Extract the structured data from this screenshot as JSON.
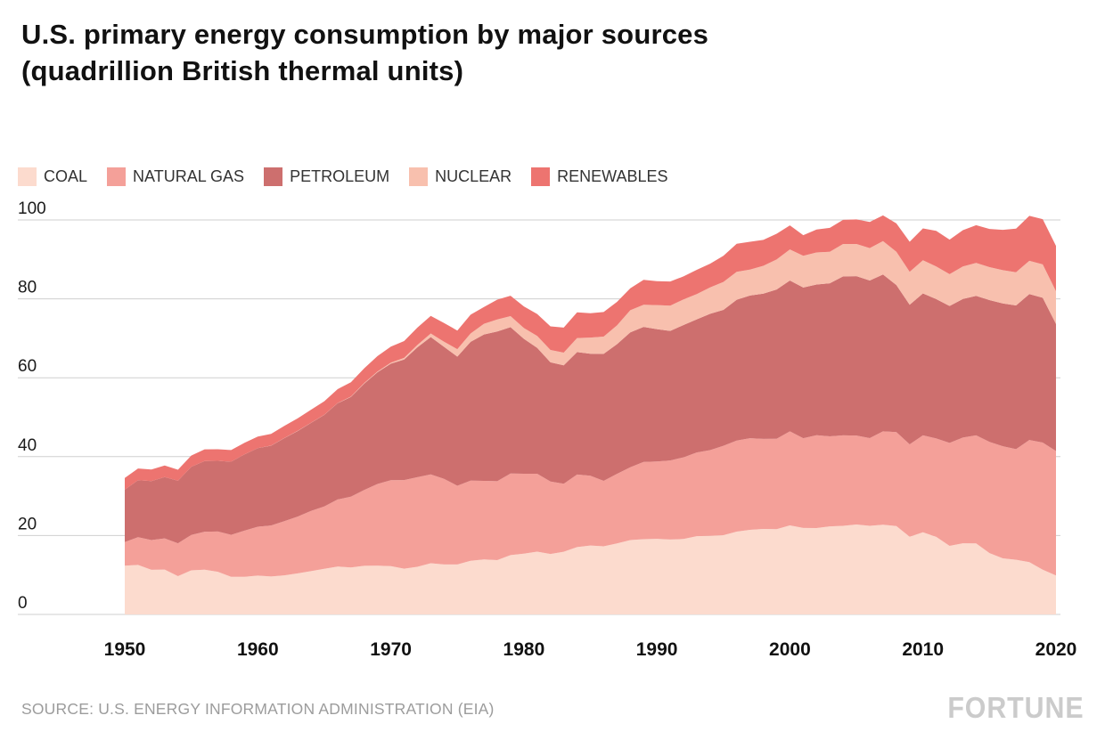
{
  "title": {
    "line1": "U.S. primary energy consumption by major sources",
    "line2": "(quadrillion British thermal units)"
  },
  "legend": [
    {
      "label": "COAL",
      "color": "#fcdbce"
    },
    {
      "label": "NATURAL GAS",
      "color": "#f4a099"
    },
    {
      "label": "PETROLEUM",
      "color": "#cd6f6e"
    },
    {
      "label": "NUCLEAR",
      "color": "#f8c0ae"
    },
    {
      "label": "RENEWABLES",
      "color": "#ed7470"
    }
  ],
  "footer": {
    "source": "SOURCE: U.S. ENERGY INFORMATION ADMINISTRATION (EIA)",
    "brand": "FORTUNE"
  },
  "chart_data": {
    "type": "area",
    "stacked": true,
    "title": "U.S. primary energy consumption by major sources (quadrillion British thermal units)",
    "xlabel": "",
    "ylabel": "",
    "xlim": [
      1950,
      2020
    ],
    "ylim": [
      0,
      100
    ],
    "yticks": [
      0,
      20,
      40,
      60,
      80,
      100
    ],
    "xticks": [
      1950,
      1960,
      1970,
      1980,
      1990,
      2000,
      2010,
      2020
    ],
    "grid": "horizontal",
    "legend_position": "top",
    "years": [
      1950,
      1951,
      1952,
      1953,
      1954,
      1955,
      1956,
      1957,
      1958,
      1959,
      1960,
      1961,
      1962,
      1963,
      1964,
      1965,
      1966,
      1967,
      1968,
      1969,
      1970,
      1971,
      1972,
      1973,
      1974,
      1975,
      1976,
      1977,
      1978,
      1979,
      1980,
      1981,
      1982,
      1983,
      1984,
      1985,
      1986,
      1987,
      1988,
      1989,
      1990,
      1991,
      1992,
      1993,
      1994,
      1995,
      1996,
      1997,
      1998,
      1999,
      2000,
      2001,
      2002,
      2003,
      2004,
      2005,
      2006,
      2007,
      2008,
      2009,
      2010,
      2011,
      2012,
      2013,
      2014,
      2015,
      2016,
      2017,
      2018,
      2019,
      2020
    ],
    "series": [
      {
        "name": "COAL",
        "color": "#fcdbce",
        "values": [
          12.35,
          12.55,
          11.31,
          11.37,
          9.71,
          11.17,
          11.35,
          10.82,
          9.53,
          9.52,
          9.84,
          9.62,
          9.91,
          10.41,
          10.96,
          11.58,
          12.14,
          11.91,
          12.33,
          12.38,
          12.26,
          11.6,
          12.08,
          12.97,
          12.66,
          12.66,
          13.58,
          13.92,
          13.77,
          15.04,
          15.42,
          15.91,
          15.32,
          15.89,
          17.07,
          17.48,
          17.26,
          18.01,
          18.85,
          19.07,
          19.17,
          18.99,
          19.12,
          19.84,
          19.91,
          20.09,
          21.0,
          21.45,
          21.66,
          21.62,
          22.58,
          21.91,
          21.9,
          22.32,
          22.47,
          22.8,
          22.45,
          22.75,
          22.39,
          19.69,
          20.83,
          19.66,
          17.38,
          18.04,
          18.0,
          15.55,
          14.23,
          13.87,
          13.25,
          11.34,
          9.89
        ]
      },
      {
        "name": "NATURAL GAS",
        "color": "#f4a099",
        "values": [
          5.97,
          7.05,
          7.55,
          7.91,
          8.33,
          8.98,
          9.61,
          10.19,
          10.66,
          11.72,
          12.39,
          12.93,
          13.73,
          14.4,
          15.29,
          15.77,
          17.0,
          17.94,
          19.21,
          20.68,
          21.79,
          22.47,
          22.7,
          22.51,
          21.73,
          19.95,
          20.35,
          19.93,
          20.0,
          20.67,
          20.24,
          19.75,
          18.36,
          17.22,
          18.39,
          17.7,
          16.59,
          17.64,
          18.45,
          19.6,
          19.6,
          20.03,
          20.71,
          21.23,
          21.73,
          22.67,
          23.09,
          23.22,
          22.83,
          22.91,
          23.82,
          22.77,
          23.51,
          22.83,
          22.93,
          22.56,
          22.24,
          23.66,
          23.84,
          23.42,
          24.57,
          24.95,
          26.09,
          26.8,
          27.39,
          28.19,
          28.4,
          28.03,
          30.96,
          32.22,
          31.54
        ]
      },
      {
        "name": "PETROLEUM",
        "color": "#cd6f6e",
        "values": [
          13.31,
          14.43,
          14.96,
          15.56,
          15.84,
          17.25,
          17.94,
          17.93,
          18.53,
          19.32,
          19.92,
          20.22,
          21.05,
          21.7,
          22.3,
          23.24,
          24.4,
          25.28,
          26.98,
          28.34,
          29.52,
          30.56,
          32.95,
          34.84,
          33.45,
          32.73,
          35.17,
          37.12,
          37.97,
          37.12,
          34.2,
          31.93,
          30.23,
          30.05,
          31.05,
          30.92,
          32.2,
          32.87,
          34.22,
          34.21,
          33.55,
          32.85,
          33.53,
          33.74,
          34.56,
          34.44,
          35.68,
          36.16,
          36.82,
          37.84,
          38.26,
          38.19,
          38.22,
          38.81,
          40.29,
          40.39,
          39.96,
          39.77,
          37.28,
          35.4,
          35.97,
          35.33,
          34.73,
          35.11,
          35.38,
          35.95,
          36.21,
          36.43,
          37.0,
          36.72,
          32.23
        ]
      },
      {
        "name": "NUCLEAR",
        "color": "#f8c0ae",
        "values": [
          0,
          0,
          0,
          0,
          0,
          0,
          0,
          0,
          0,
          0,
          0.01,
          0.02,
          0.03,
          0.04,
          0.04,
          0.04,
          0.06,
          0.09,
          0.14,
          0.15,
          0.24,
          0.41,
          0.58,
          0.91,
          1.27,
          1.9,
          2.11,
          2.7,
          3.02,
          2.78,
          2.74,
          3.01,
          3.13,
          3.2,
          3.55,
          4.08,
          4.38,
          4.75,
          5.59,
          5.6,
          6.1,
          6.42,
          6.48,
          6.41,
          6.69,
          7.08,
          7.09,
          6.6,
          7.07,
          7.61,
          7.86,
          8.03,
          8.14,
          7.96,
          8.22,
          8.16,
          8.21,
          8.46,
          8.43,
          8.36,
          8.43,
          8.27,
          8.06,
          8.24,
          8.34,
          8.34,
          8.42,
          8.42,
          8.44,
          8.46,
          8.25
        ]
      },
      {
        "name": "RENEWABLES",
        "color": "#ed7470",
        "values": [
          2.98,
          2.96,
          2.94,
          2.91,
          2.8,
          2.87,
          2.94,
          2.93,
          2.94,
          2.93,
          2.93,
          2.97,
          3.1,
          3.15,
          3.31,
          3.4,
          3.5,
          3.65,
          3.73,
          3.94,
          4.08,
          4.27,
          4.4,
          4.43,
          4.77,
          4.72,
          4.77,
          4.25,
          5.04,
          5.17,
          5.49,
          5.56,
          5.98,
          6.34,
          6.52,
          6.18,
          6.24,
          5.96,
          5.56,
          6.35,
          6.04,
          6.12,
          5.84,
          6.13,
          6.02,
          6.63,
          7.1,
          7.03,
          6.56,
          6.51,
          6.1,
          5.23,
          5.79,
          6.07,
          6.12,
          6.23,
          6.64,
          6.51,
          7.19,
          7.6,
          8.06,
          9.04,
          8.76,
          9.22,
          9.56,
          9.69,
          10.23,
          11.03,
          11.38,
          11.46,
          11.51
        ]
      }
    ]
  }
}
